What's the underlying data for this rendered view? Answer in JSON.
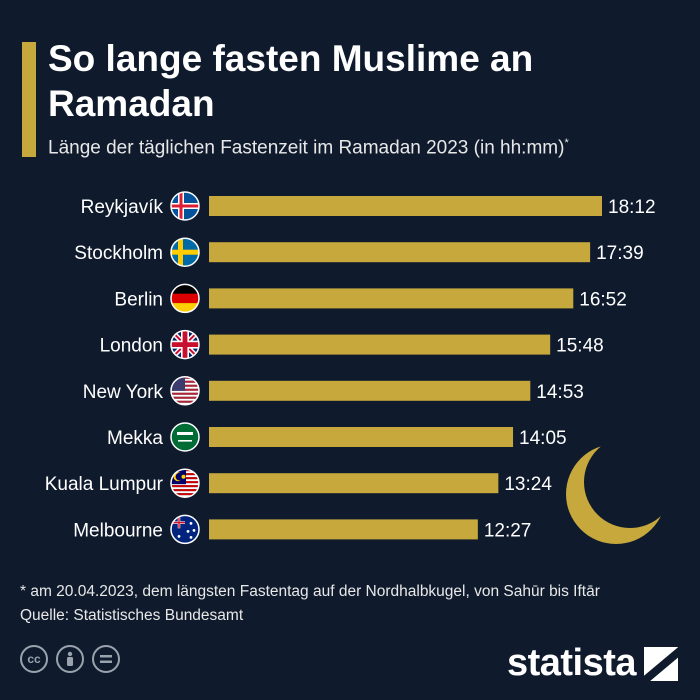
{
  "title": "So lange fasten Muslime an Ramadan",
  "subtitle": "Länge der täglichen Fastenzeit im Ramadan 2023 (in hh:mm)",
  "subtitle_marker": "*",
  "footnote": "* am 20.04.2023, dem längsten Fastentag auf der Nordhalbkugel, von Sahūr bis Iftār",
  "source": "Quelle: Statistisches Bundesamt",
  "brand": "statista",
  "license_icons": [
    "cc",
    "by",
    "nd"
  ],
  "colors": {
    "background": "#0f1b2d",
    "bar": "#c6a83c",
    "moon": "#c6a83c"
  },
  "chart_data": {
    "type": "bar",
    "orientation": "horizontal",
    "categories": [
      "Reykjavík",
      "Stockholm",
      "Berlin",
      "London",
      "New York",
      "Mekka",
      "Kuala Lumpur",
      "Melbourne"
    ],
    "flags": [
      "iceland-flag-icon",
      "sweden-flag-icon",
      "germany-flag-icon",
      "uk-flag-icon",
      "usa-flag-icon",
      "saudi-arabia-flag-icon",
      "malaysia-flag-icon",
      "australia-flag-icon"
    ],
    "value_labels": [
      "18:12",
      "17:39",
      "16:52",
      "15:48",
      "14:53",
      "14:05",
      "13:24",
      "12:27"
    ],
    "values": [
      18.2,
      17.65,
      16.87,
      15.8,
      14.88,
      14.08,
      13.4,
      12.45
    ],
    "unit": "hh:mm",
    "xlim": [
      0,
      18.2
    ],
    "grid": false
  }
}
